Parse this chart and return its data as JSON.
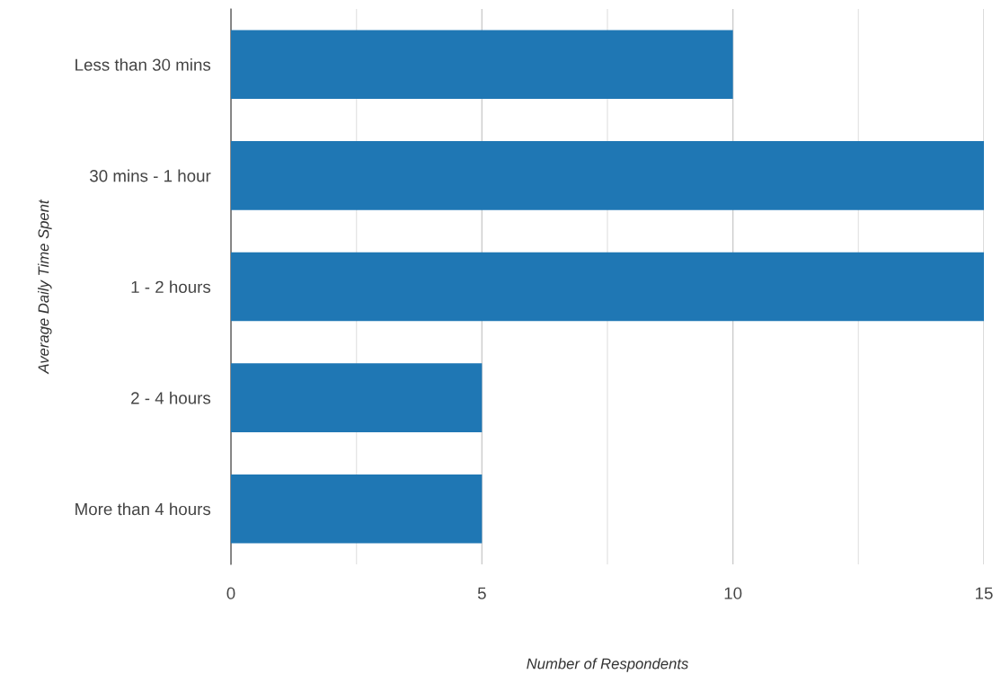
{
  "chart_data": {
    "type": "bar",
    "orientation": "horizontal",
    "categories": [
      "Less than 30 mins",
      "30 mins - 1 hour",
      "1 - 2 hours",
      "2 - 4 hours",
      "More than 4 hours"
    ],
    "values": [
      10,
      15,
      15,
      5,
      5
    ],
    "color": "#1f77b4",
    "xlabel": "Number of Respondents",
    "ylabel": "Average Daily Time Spent",
    "xlim": [
      0,
      15
    ],
    "xticks": [
      0,
      {
        "value": 2.5,
        "label": null
      },
      5,
      {
        "value": 7.5,
        "label": null
      },
      10,
      {
        "value": 12.5,
        "label": null
      },
      15
    ],
    "grid": "x"
  }
}
